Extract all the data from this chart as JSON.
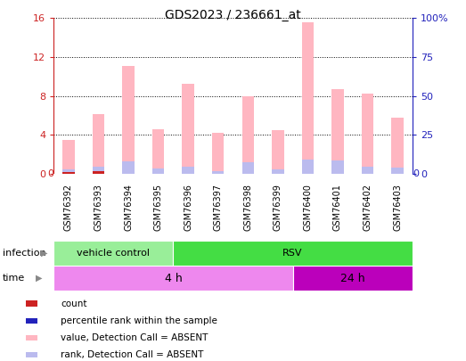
{
  "title": "GDS2023 / 236661_at",
  "samples": [
    "GSM76392",
    "GSM76393",
    "GSM76394",
    "GSM76395",
    "GSM76396",
    "GSM76397",
    "GSM76398",
    "GSM76399",
    "GSM76400",
    "GSM76401",
    "GSM76402",
    "GSM76403"
  ],
  "pink_values": [
    3.5,
    6.1,
    11.1,
    4.6,
    9.2,
    4.2,
    8.0,
    4.5,
    15.5,
    8.7,
    8.2,
    5.8
  ],
  "blue_values": [
    0.5,
    0.7,
    1.3,
    0.55,
    0.75,
    0.28,
    1.2,
    0.45,
    1.5,
    1.4,
    0.75,
    0.65
  ],
  "red_count": [
    0.18,
    0.28,
    0.0,
    0.0,
    0.0,
    0.0,
    0.0,
    0.0,
    0.0,
    0.0,
    0.0,
    0.0
  ],
  "ylim_left": [
    0,
    16
  ],
  "ylim_right": [
    0,
    100
  ],
  "yticks_left": [
    0,
    4,
    8,
    12,
    16
  ],
  "yticks_right": [
    0,
    25,
    50,
    75,
    100
  ],
  "ytick_labels_right": [
    "0",
    "25",
    "50",
    "75",
    "100%"
  ],
  "pink_color": "#FFB6C1",
  "blue_color": "#BBBBEE",
  "red_color": "#CC2222",
  "blue_dark": "#2222BB",
  "infection_groups": [
    {
      "label": "vehicle control",
      "start": 0,
      "end": 4,
      "color": "#99EE99"
    },
    {
      "label": "RSV",
      "start": 4,
      "end": 12,
      "color": "#44DD44"
    }
  ],
  "time_groups": [
    {
      "label": "4 h",
      "start": 0,
      "end": 8,
      "color": "#EE88EE"
    },
    {
      "label": "24 h",
      "start": 8,
      "end": 12,
      "color": "#BB00BB"
    }
  ],
  "legend_labels": [
    "count",
    "percentile rank within the sample",
    "value, Detection Call = ABSENT",
    "rank, Detection Call = ABSENT"
  ],
  "legend_colors": [
    "#CC2222",
    "#2222BB",
    "#FFB6C1",
    "#BBBBEE"
  ],
  "xticklabel_bg": "#CCCCCC",
  "plot_bg": "#FFFFFF",
  "left_axis_color": "#CC2222",
  "right_axis_color": "#2222BB",
  "bar_width": 0.4
}
